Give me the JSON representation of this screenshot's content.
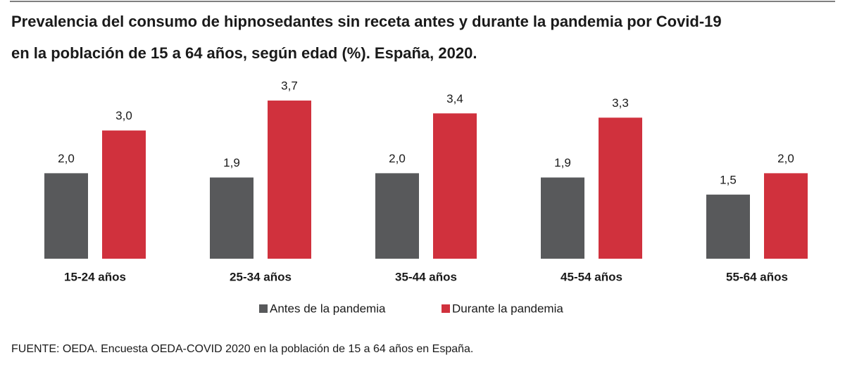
{
  "chart_data": {
    "type": "bar",
    "title": [
      "Prevalencia del consumo de hipnosedantes sin receta antes y durante la pandemia por Covid-19",
      "en la población de 15 a 64 años, según edad (%). España, 2020."
    ],
    "categories": [
      "15-24 años",
      "25-34 años",
      "35-44 años",
      "45-54 años",
      "55-64 años"
    ],
    "series": [
      {
        "name": "Antes de la pandemia",
        "color": "#58595b",
        "values": [
          2.0,
          1.9,
          2.0,
          1.9,
          1.5
        ],
        "value_labels": [
          "2,0",
          "1,9",
          "2,0",
          "1,9",
          "1,5"
        ]
      },
      {
        "name": "Durante la pandemia",
        "color": "#d0313d",
        "values": [
          3.0,
          3.7,
          3.4,
          3.3,
          2.0
        ],
        "value_labels": [
          "3,0",
          "3,7",
          "3,4",
          "3,3",
          "2,0"
        ]
      }
    ],
    "legend": "bottom",
    "source": "FUENTE: OEDA. Encuesta OEDA-COVID 2020 en la población de 15 a 64 años en España."
  }
}
